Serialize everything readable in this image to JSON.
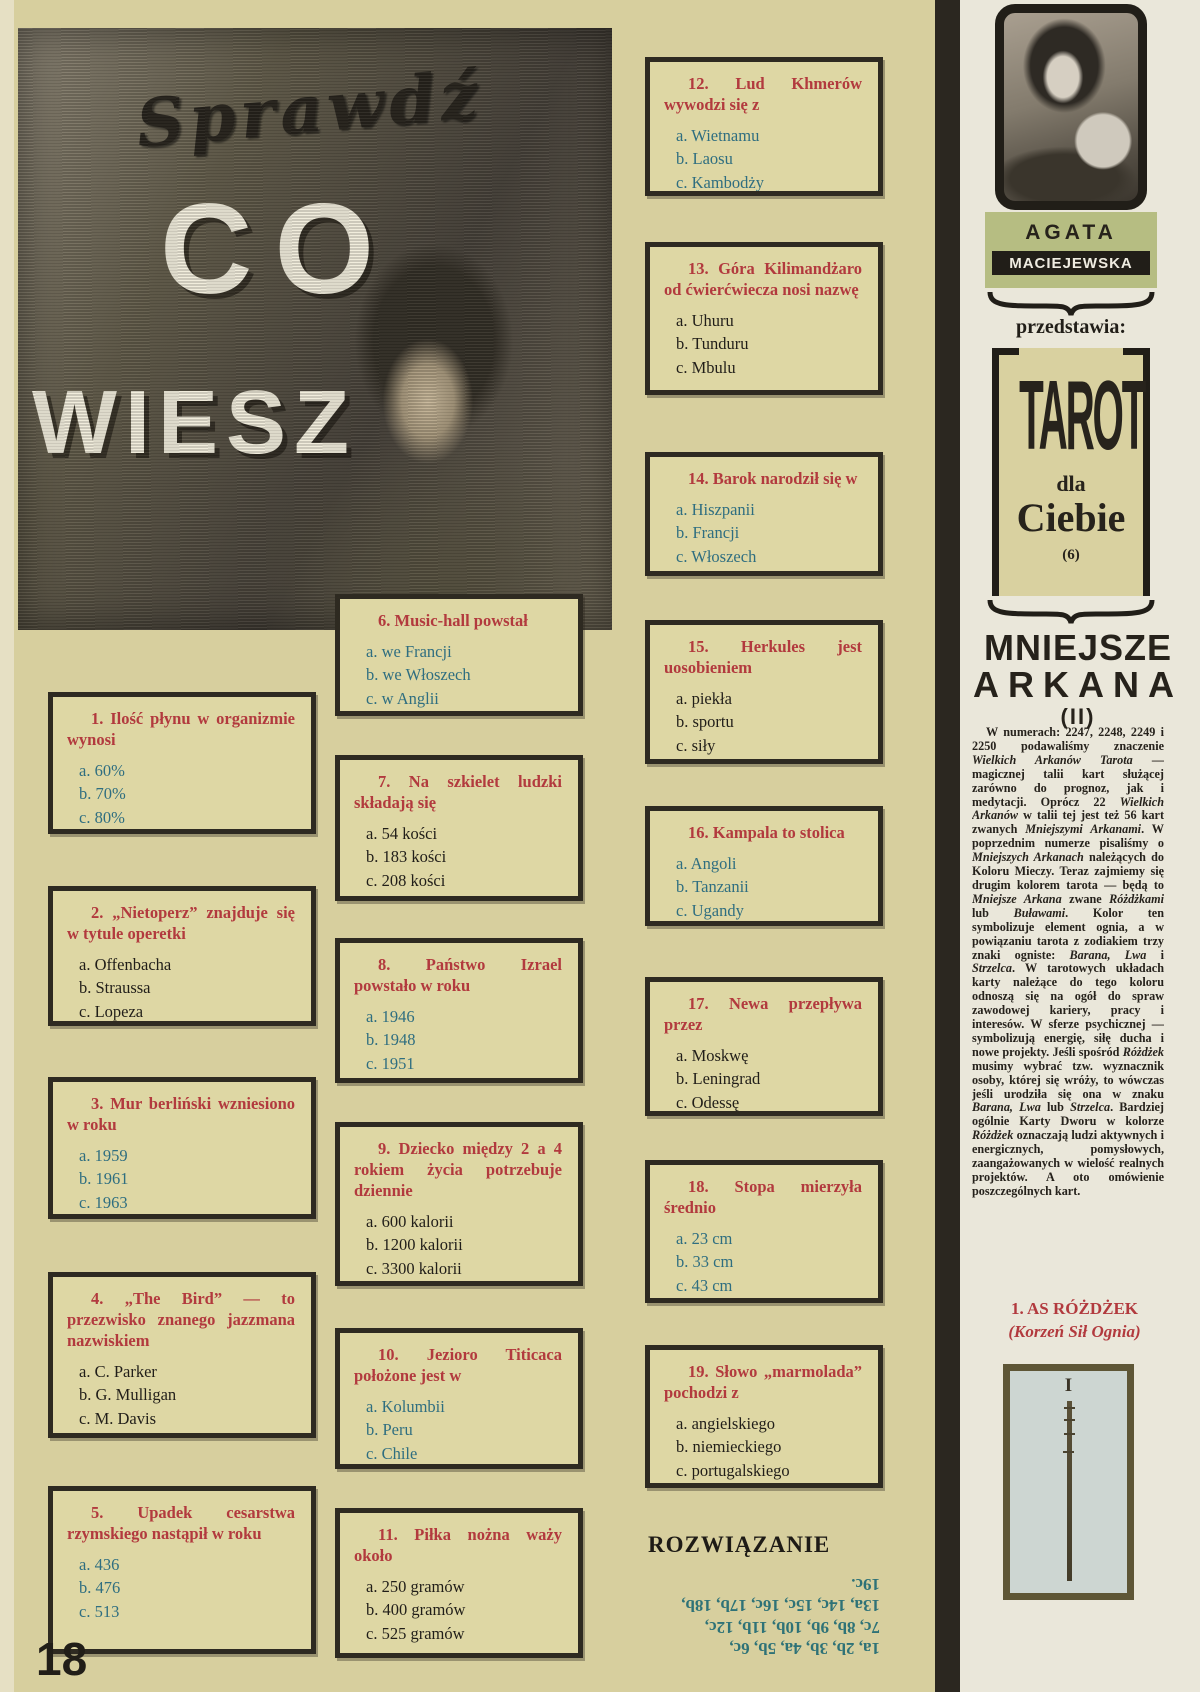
{
  "page": {
    "number": "18"
  },
  "masthead": {
    "script_title": "Sprawdź",
    "title_line1": "CO",
    "title_line2": "WIESZ"
  },
  "colors": {
    "question_red": "#b23a3e",
    "answer_teal": "#2f6e80",
    "answer_black": "#211e19",
    "solution_teal": "#2e7277",
    "main_background": "#d7cf9e",
    "author_green": "#b6bd82"
  },
  "quiz": {
    "questions": [
      {
        "num": "1.",
        "title": "Ilość płynu w organizmie wynosi",
        "ink": "teal",
        "answers": [
          "a. 60%",
          "b. 70%",
          "c. 80%"
        ]
      },
      {
        "num": "2.",
        "title": "„Nietoperz” znajduje się w tytule operetki",
        "ink": "black",
        "answers": [
          "a. Offenbacha",
          "b. Straussa",
          "c. Lopeza"
        ]
      },
      {
        "num": "3.",
        "title": "Mur berliński wzniesiono w roku",
        "ink": "teal",
        "answers": [
          "a. 1959",
          "b. 1961",
          "c. 1963"
        ]
      },
      {
        "num": "4.",
        "title": "„The Bird” — to przezwisko znanego jazzmana nazwiskiem",
        "ink": "black",
        "answers": [
          "a. C. Parker",
          "b. G. Mulligan",
          "c. M. Davis"
        ]
      },
      {
        "num": "5.",
        "title": "Upadek cesarstwa rzymskiego nastąpił w roku",
        "ink": "teal",
        "answers": [
          "a. 436",
          "b. 476",
          "c. 513"
        ]
      },
      {
        "num": "6.",
        "title": "Music-hall powstał",
        "ink": "teal",
        "answers": [
          "a. we Francji",
          "b. we Włoszech",
          "c. w Anglii"
        ]
      },
      {
        "num": "7.",
        "title": "Na szkielet ludzki składają się",
        "ink": "black",
        "answers": [
          "a. 54 kości",
          "b. 183 kości",
          "c. 208 kości"
        ]
      },
      {
        "num": "8.",
        "title": "Państwo Izrael powstało w roku",
        "ink": "teal",
        "answers": [
          "a. 1946",
          "b. 1948",
          "c. 1951"
        ]
      },
      {
        "num": "9.",
        "title": "Dziecko między 2 a 4 rokiem życia potrzebuje dziennie",
        "ink": "black",
        "answers": [
          "a. 600 kalorii",
          "b. 1200 kalorii",
          "c. 3300 kalorii"
        ]
      },
      {
        "num": "10.",
        "title": "Jezioro Titicaca położone jest w",
        "ink": "teal",
        "answers": [
          "a. Kolumbii",
          "b. Peru",
          "c. Chile"
        ]
      },
      {
        "num": "11.",
        "title": "Piłka nożna waży około",
        "ink": "black",
        "answers": [
          "a. 250 gramów",
          "b. 400 gramów",
          "c. 525 gramów"
        ]
      },
      {
        "num": "12.",
        "title": "Lud Khmerów wywodzi się z",
        "ink": "teal",
        "answers": [
          "a. Wietnamu",
          "b. Laosu",
          "c. Kambodży"
        ]
      },
      {
        "num": "13.",
        "title": "Góra Kilimandżaro od ćwierćwiecza nosi nazwę",
        "ink": "black",
        "answers": [
          "a. Uhuru",
          "b. Tunduru",
          "c. Mbulu"
        ]
      },
      {
        "num": "14.",
        "title": "Barok narodził się w",
        "ink": "teal",
        "answers": [
          "a. Hiszpanii",
          "b. Francji",
          "c. Włoszech"
        ]
      },
      {
        "num": "15.",
        "title": "Herkules jest uosobieniem",
        "ink": "black",
        "answers": [
          "a. piekła",
          "b. sportu",
          "c. siły"
        ]
      },
      {
        "num": "16.",
        "title": "Kampala to stolica",
        "ink": "teal",
        "answers": [
          "a. Angoli",
          "b. Tanzanii",
          "c. Ugandy"
        ]
      },
      {
        "num": "17.",
        "title": "Newa przepływa przez",
        "ink": "black",
        "answers": [
          "a. Moskwę",
          "b. Leningrad",
          "c. Odessę"
        ]
      },
      {
        "num": "18.",
        "title": "Stopa mierzyła średnio",
        "ink": "teal",
        "answers": [
          "a. 23 cm",
          "b. 33 cm",
          "c. 43 cm"
        ]
      },
      {
        "num": "19.",
        "title": "Słowo „marmolada” pochodzi z",
        "ink": "black",
        "answers": [
          "a. angielskiego",
          "b. niemieckiego",
          "c. portugalskiego"
        ]
      }
    ],
    "solution": {
      "heading": "ROZWIĄZANIE",
      "lines": [
        "1a, 2b, 3b, 4a, 5b, 6c,",
        "7c, 8b, 9b, 10b, 11b, 12c,",
        "13a, 14c, 15c, 16c, 17b, 18b,",
        "19c."
      ]
    }
  },
  "sidebar": {
    "author_first": "AGATA",
    "author_last": "MACIEJEWSKA",
    "presents": "przedstawia:",
    "series_title": "TAROT",
    "series_sub1": "dla",
    "series_sub2": "Ciebie",
    "series_part": "(6)",
    "section_line1": "MNIEJSZE",
    "section_line2": "ARKANA",
    "section_part": "(II)",
    "article": [
      {
        "t": "W numerach: 2247, 2248, 2249 i 2250 podawaliśmy znaczenie "
      },
      {
        "t": "Wielkich Arkanów Tarota",
        "i": true
      },
      {
        "t": " — magicznej talii kart służącej zarówno do prognoz, jak i medytacji. Oprócz 22 "
      },
      {
        "t": "Wielkich Arkanów",
        "i": true
      },
      {
        "t": " w talii tej jest też 56 kart zwanych "
      },
      {
        "t": "Mniejszymi Arkanami",
        "i": true
      },
      {
        "t": ". W poprzednim numerze pisaliśmy o "
      },
      {
        "t": "Mniejszych Arkanach",
        "i": true
      },
      {
        "t": " należących do Koloru Mieczy. Teraz zajmiemy się drugim kolorem tarota — będą to "
      },
      {
        "t": "Mniejsze Arkana",
        "i": true
      },
      {
        "t": " zwane "
      },
      {
        "t": "Różdżkami",
        "i": true
      },
      {
        "t": " lub "
      },
      {
        "t": "Buławami",
        "i": true
      },
      {
        "t": ". Kolor ten symbolizuje element ognia, a w powiązaniu tarota z zodiakiem trzy znaki ogniste: "
      },
      {
        "t": "Barana, Lwa",
        "i": true
      },
      {
        "t": " i "
      },
      {
        "t": "Strzelca",
        "i": true
      },
      {
        "t": ". W tarotowych układach karty należące do tego koloru odnoszą się na ogół do spraw zawodowej kariery, pracy i interesów. W sferze psychicznej — symbolizują energię, siłę ducha i nowe projekty. Jeśli spośród "
      },
      {
        "t": "Różdżek",
        "i": true
      },
      {
        "t": " musimy wybrać tzw. wyznacznik osoby, której się wróży, to wówczas jeśli urodziła się ona w znaku "
      },
      {
        "t": "Barana, Lwa",
        "i": true
      },
      {
        "t": " lub "
      },
      {
        "t": "Strzelca",
        "i": true
      },
      {
        "t": ". Bardziej ogólnie Karty Dworu w kolorze "
      },
      {
        "t": "Różdżek",
        "i": true
      },
      {
        "t": " oznaczają ludzi aktywnych i energicznych, pomysłowych, zaangażowanych w wielość realnych projektów. A oto omówienie poszczególnych kart."
      }
    ],
    "card_heading_line1": "1. AS RÓŻDŻEK",
    "card_heading_line2": "(Korzeń Sił Ognia)",
    "card_numeral": "I"
  }
}
